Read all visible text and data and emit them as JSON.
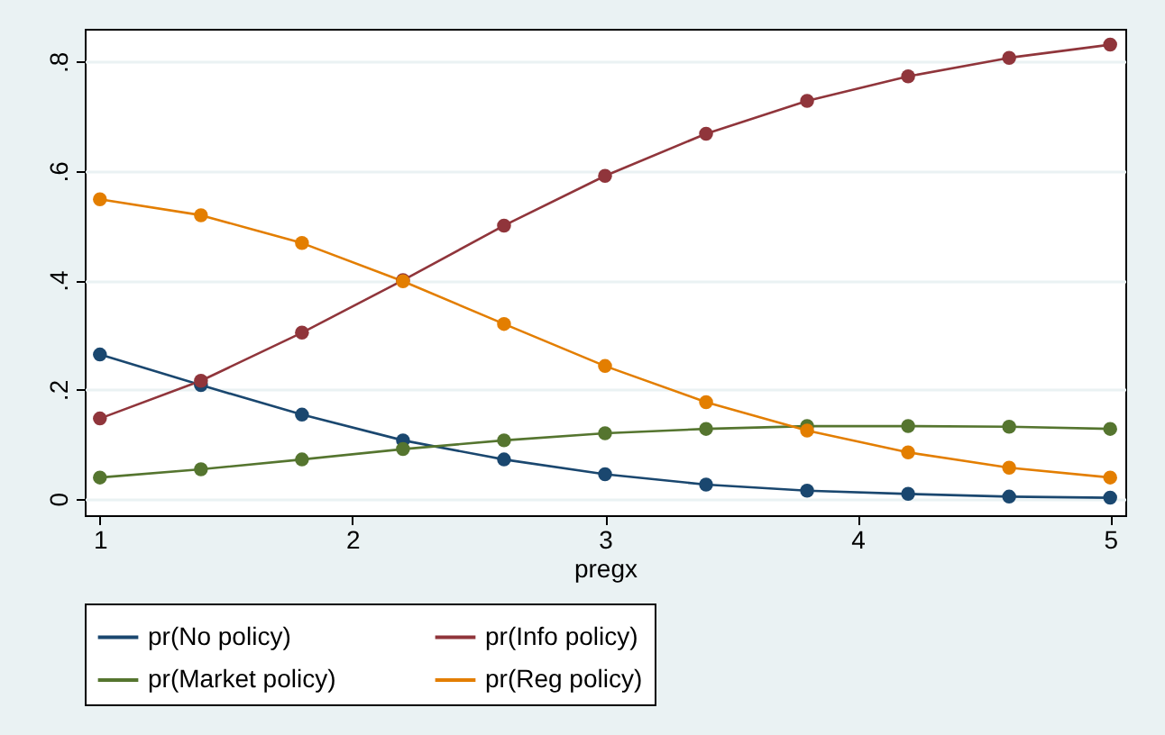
{
  "chart_data": {
    "type": "line",
    "xlabel": "pregx",
    "x": [
      1,
      1.4,
      1.8,
      2.2,
      2.6,
      3,
      3.4,
      3.8,
      4.2,
      4.6,
      5
    ],
    "series": [
      {
        "name": "pr(No policy)",
        "color": "#1a476f",
        "values": [
          0.264,
          0.208,
          0.154,
          0.107,
          0.072,
          0.045,
          0.026,
          0.015,
          0.009,
          0.004,
          0.002
        ]
      },
      {
        "name": "pr(Info policy)",
        "color": "#90353b",
        "values": [
          0.147,
          0.216,
          0.304,
          0.4,
          0.5,
          0.591,
          0.668,
          0.728,
          0.773,
          0.807,
          0.831
        ]
      },
      {
        "name": "pr(Market policy)",
        "color": "#55752f",
        "values": [
          0.039,
          0.054,
          0.072,
          0.091,
          0.107,
          0.12,
          0.128,
          0.133,
          0.133,
          0.132,
          0.128
        ]
      },
      {
        "name": "pr(Reg policy)",
        "color": "#e37e00",
        "values": [
          0.548,
          0.519,
          0.468,
          0.398,
          0.32,
          0.243,
          0.177,
          0.125,
          0.085,
          0.057,
          0.039
        ]
      }
    ],
    "xlim": [
      0.94,
      5.06
    ],
    "ylim": [
      -0.03,
      0.86
    ],
    "xticks": [
      1,
      2,
      3,
      4,
      5
    ],
    "yticks": [
      0,
      {
        "value": 0.2,
        "label": ".2"
      },
      {
        "value": 0.4,
        "label": ".4"
      },
      {
        "value": 0.6,
        "label": ".6"
      },
      {
        "value": 0.8,
        "label": ".8"
      }
    ],
    "grid": "y",
    "legend": "bottom",
    "marker": "circle",
    "line_style": "solid"
  }
}
